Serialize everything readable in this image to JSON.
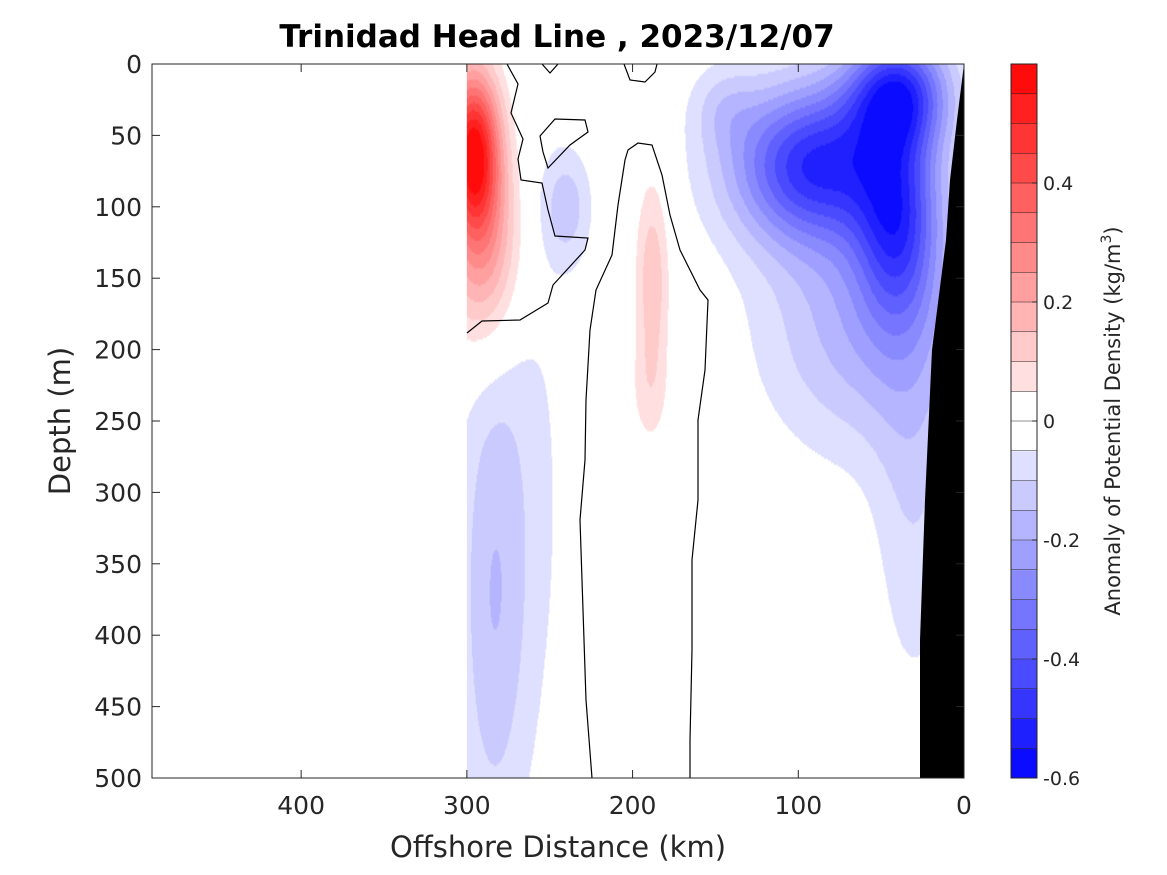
{
  "chart_data": {
    "type": "contour",
    "title": "Trinidad Head Line , 2023/12/07",
    "xlabel": "Offshore Distance (km)",
    "ylabel": "Depth (m)",
    "xlim": [
      490,
      0
    ],
    "ylim": [
      500,
      0
    ],
    "x_reversed": true,
    "y_reversed": true,
    "xticks": [
      400,
      300,
      200,
      100,
      0
    ],
    "yticks": [
      0,
      50,
      100,
      150,
      200,
      250,
      300,
      350,
      400,
      450,
      500
    ],
    "data_extent_km": [
      300,
      0
    ],
    "zero_contour": true,
    "bathymetry_color": "#000000",
    "colorbar": {
      "label": "Anomaly of Potential Density (kg/m",
      "label_sup": "3",
      "label_end": ")",
      "range": [
        -0.6,
        0.6
      ],
      "levels": 24,
      "ticks": [
        -0.6,
        -0.4,
        -0.2,
        0,
        0.2,
        0.4
      ],
      "tick_labels": [
        "-0.6",
        "-0.4",
        "-0.2",
        "0",
        "0.2",
        "0.4"
      ],
      "colormap": "blue-white-red",
      "low_color": "#0000ff",
      "mid_color": "#ffffff",
      "high_color": "#ff0000"
    },
    "features": [
      {
        "kind": "positive",
        "name": "nearshore-300km",
        "x_km": 292,
        "depth_m": 60,
        "peak": 0.5
      },
      {
        "kind": "positive",
        "name": "core-190km",
        "x_km": 188,
        "depth_m": 150,
        "peak": 0.12
      },
      {
        "kind": "negative",
        "name": "inshore-90km",
        "x_km": 90,
        "depth_m": 70,
        "peak": -0.5
      },
      {
        "kind": "negative",
        "name": "inshore-40km",
        "x_km": 42,
        "depth_m": 20,
        "peak": -0.5
      },
      {
        "kind": "negative",
        "name": "deep-west",
        "x_km": 285,
        "depth_m": 400,
        "peak": -0.1
      }
    ]
  }
}
